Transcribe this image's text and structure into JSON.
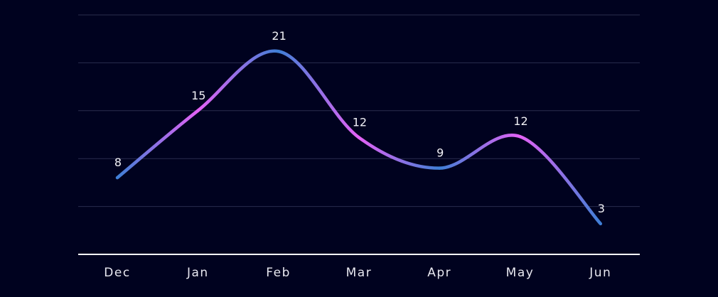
{
  "chart_data": {
    "type": "line",
    "categories": [
      "Dec",
      "Jan",
      "Feb",
      "Mar",
      "Apr",
      "May",
      "Jun"
    ],
    "values": [
      8,
      15,
      21,
      12,
      9,
      12,
      3
    ],
    "curve_values": [
      8.0,
      15.0,
      21.2,
      12.2,
      9.0,
      12.3,
      3.2
    ],
    "title": "",
    "xlabel": "",
    "ylabel": "",
    "ylim": [
      0,
      25
    ],
    "grid": true,
    "y_axis_labels_shown": false,
    "colors": {
      "background": "#00021f",
      "line_blue": "#3f7fd6",
      "line_magenta": "#e462f5",
      "grid": "#2a2d4e",
      "axis": "#ffffff"
    }
  }
}
